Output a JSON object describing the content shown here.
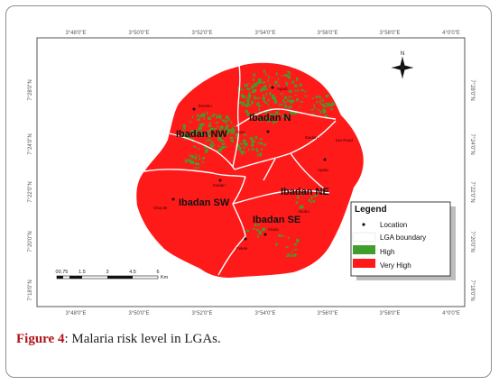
{
  "figure": {
    "label": "Figure 4",
    "caption": ": Malaria risk level in LGAs."
  },
  "map": {
    "top_ticks": [
      "3°48'0\"E",
      "3°50'0\"E",
      "3°52'0\"E",
      "3°54'0\"E",
      "3°56'0\"E",
      "3°58'0\"E",
      "4°0'0\"E"
    ],
    "bottom_ticks": [
      "3°48'0\"E",
      "3°50'0\"E",
      "3°52'0\"E",
      "3°54'0\"E",
      "3°56'0\"E",
      "3°58'0\"E",
      "4°0'0\"E"
    ],
    "left_ticks": [
      "7°28'0\"N",
      "7°24'0\"N",
      "7°22'0\"N",
      "7°20'0\"N",
      "7°18'0\"N"
    ],
    "right_ticks": [
      "7°28'0\"N",
      "7°24'0\"N",
      "7°22'0\"N",
      "7°20'0\"N",
      "7°18'0\"N"
    ],
    "north_label": "N",
    "regions": {
      "n": "Ibadan N",
      "nw": "Ibadan NW",
      "sw": "Ibadan SW",
      "ne": "Ibadan NE",
      "se": "Ibadan SE"
    },
    "places": [
      "Ikereku",
      "Agodi",
      "Ojoo",
      "Ibadan",
      "Iwo Road",
      "Apata",
      "Oluyole",
      "Ibadan",
      "Felele",
      "Olodo",
      "Akobo"
    ]
  },
  "legend": {
    "title": "Legend",
    "items": [
      {
        "label": "Location",
        "symbol": "dot"
      },
      {
        "label": "LGA boundary",
        "symbol": "box",
        "color": "#ffffff"
      },
      {
        "label": "High",
        "symbol": "box",
        "color": "#3f9e2c"
      },
      {
        "label": "Very High",
        "symbol": "box",
        "color": "#ff1a1a"
      }
    ]
  },
  "scale_bar": {
    "labels": [
      "0",
      "0.75",
      "1.5",
      "3",
      "4.5",
      "6"
    ],
    "unit": "Km"
  },
  "colors": {
    "very_high": "#ff1a1a",
    "high": "#3f9e2c",
    "boundary": "#ffffff"
  }
}
